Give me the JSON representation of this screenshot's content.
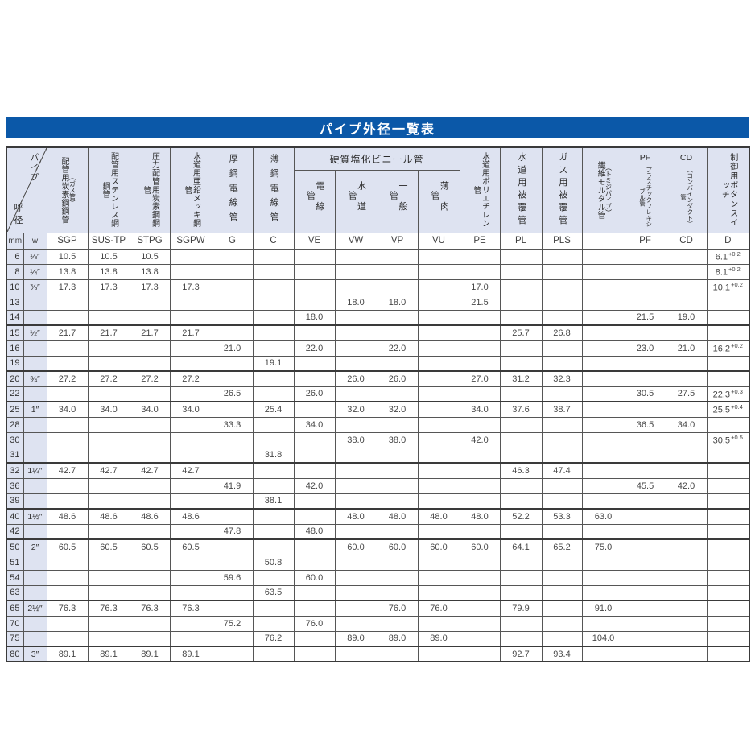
{
  "title": "パイプ外径一覧表",
  "colors": {
    "title_bar": "#0b58a8",
    "header_bg": "#dee3f1",
    "grid": "#565656"
  },
  "table": {
    "corner": {
      "top": "パイプ",
      "bottom": "呼径"
    },
    "units": {
      "mm": "mm",
      "inch": "w"
    },
    "headers": {
      "sgp": {
        "main": "配管用炭素鋼鋼管",
        "paren": "（ガス管）",
        "code": "SGP"
      },
      "sus": {
        "main": "配管用ステンレス鋼鋼管",
        "code": "SUS-TP"
      },
      "stpg": {
        "main": "圧力配管用炭素鋼鋼管",
        "code": "STPG"
      },
      "sgpw": {
        "main": "水道用亜鉛メッキ鋼管",
        "code": "SGPW"
      },
      "g": {
        "main": "厚鋼電線管",
        "code": "G"
      },
      "c": {
        "main": "薄鋼電線管",
        "code": "C"
      },
      "vinyl": {
        "group": "硬質塩化ビニール管",
        "ve": {
          "label": "電線管",
          "code": "VE"
        },
        "vw": {
          "label": "水道管",
          "code": "VW"
        },
        "vp": {
          "label": "一般管",
          "code": "VP"
        },
        "vu": {
          "label": "薄肉管",
          "code": "VU"
        }
      },
      "pe": {
        "main": "水道用ポリエチレン管",
        "code": "PE"
      },
      "pl": {
        "main": "水道用被覆管",
        "code": "PL"
      },
      "pls": {
        "main": "ガス用被覆管",
        "code": "PLS"
      },
      "fm": {
        "main": "繊維モルタル管",
        "paren": "（トミジパイプ）",
        "code": ""
      },
      "pf": {
        "latin": "PF",
        "small": "プラスチックフレキシブル管",
        "code": "PF"
      },
      "cd": {
        "latin": "CD",
        "small": "（コンバインダクト）管",
        "code": "CD"
      },
      "d": {
        "main": "制御用ボタンスイッチ",
        "code": "D"
      }
    },
    "rows": [
      {
        "mm": "6",
        "inch": "⅛″",
        "sgp": "10.5",
        "sus": "10.5",
        "stpg": "10.5",
        "d": "6.1",
        "dsup": "+0.2"
      },
      {
        "mm": "8",
        "inch": "¼″",
        "sgp": "13.8",
        "sus": "13.8",
        "stpg": "13.8",
        "d": "8.1",
        "dsup": "+0.2"
      },
      {
        "mm": "10",
        "inch": "⅜″",
        "sgp": "17.3",
        "sus": "17.3",
        "stpg": "17.3",
        "sgpw": "17.3",
        "pe": "17.0",
        "d": "10.1",
        "dsup": "+0.2"
      },
      {
        "mm": "13",
        "vw": "18.0",
        "vp": "18.0",
        "pe": "21.5"
      },
      {
        "mm": "14",
        "ve": "18.0",
        "pf": "21.5",
        "cd": "19.0"
      },
      {
        "mm": "15",
        "inch": "½″",
        "sgp": "21.7",
        "sus": "21.7",
        "stpg": "21.7",
        "sgpw": "21.7",
        "pl": "25.7",
        "pls": "26.8",
        "thick": true
      },
      {
        "mm": "16",
        "g": "21.0",
        "ve": "22.0",
        "vp": "22.0",
        "pf": "23.0",
        "cd": "21.0",
        "d": "16.2",
        "dsup": "+0.2"
      },
      {
        "mm": "19",
        "c": "19.1"
      },
      {
        "mm": "20",
        "inch": "¾″",
        "sgp": "27.2",
        "sus": "27.2",
        "stpg": "27.2",
        "sgpw": "27.2",
        "vw": "26.0",
        "vp": "26.0",
        "pe": "27.0",
        "pl": "31.2",
        "pls": "32.3",
        "thick": true
      },
      {
        "mm": "22",
        "g": "26.5",
        "ve": "26.0",
        "pf": "30.5",
        "cd": "27.5",
        "d": "22.3",
        "dsup": "+0.3"
      },
      {
        "mm": "25",
        "inch": "1″",
        "sgp": "34.0",
        "sus": "34.0",
        "stpg": "34.0",
        "sgpw": "34.0",
        "c": "25.4",
        "vw": "32.0",
        "vp": "32.0",
        "pe": "34.0",
        "pl": "37.6",
        "pls": "38.7",
        "d": "25.5",
        "dsup": "+0.4",
        "thick": true
      },
      {
        "mm": "28",
        "g": "33.3",
        "ve": "34.0",
        "pf": "36.5",
        "cd": "34.0"
      },
      {
        "mm": "30",
        "vw": "38.0",
        "vp": "38.0",
        "pe": "42.0",
        "d": "30.5",
        "dsup": "+0.5"
      },
      {
        "mm": "31",
        "c": "31.8"
      },
      {
        "mm": "32",
        "inch": "1¼″",
        "sgp": "42.7",
        "sus": "42.7",
        "stpg": "42.7",
        "sgpw": "42.7",
        "pl": "46.3",
        "pls": "47.4",
        "thick": true
      },
      {
        "mm": "36",
        "g": "41.9",
        "ve": "42.0",
        "pf": "45.5",
        "cd": "42.0"
      },
      {
        "mm": "39",
        "c": "38.1"
      },
      {
        "mm": "40",
        "inch": "1½″",
        "sgp": "48.6",
        "sus": "48.6",
        "stpg": "48.6",
        "sgpw": "48.6",
        "vw": "48.0",
        "vp": "48.0",
        "vu": "48.0",
        "pe": "48.0",
        "pl": "52.2",
        "pls": "53.3",
        "fm": "63.0",
        "thick": true
      },
      {
        "mm": "42",
        "g": "47.8",
        "ve": "48.0"
      },
      {
        "mm": "50",
        "inch": "2″",
        "sgp": "60.5",
        "sus": "60.5",
        "stpg": "60.5",
        "sgpw": "60.5",
        "vw": "60.0",
        "vp": "60.0",
        "vu": "60.0",
        "pe": "60.0",
        "pl": "64.1",
        "pls": "65.2",
        "fm": "75.0",
        "thick": true
      },
      {
        "mm": "51",
        "c": "50.8"
      },
      {
        "mm": "54",
        "g": "59.6",
        "ve": "60.0"
      },
      {
        "mm": "63",
        "c": "63.5"
      },
      {
        "mm": "65",
        "inch": "2½″",
        "sgp": "76.3",
        "sus": "76.3",
        "stpg": "76.3",
        "sgpw": "76.3",
        "vp": "76.0",
        "vu": "76.0",
        "pl": "79.9",
        "fm": "91.0",
        "thick": true
      },
      {
        "mm": "70",
        "g": "75.2",
        "ve": "76.0"
      },
      {
        "mm": "75",
        "c": "76.2",
        "vw": "89.0",
        "vp": "89.0",
        "vu": "89.0",
        "fm": "104.0"
      },
      {
        "mm": "80",
        "inch": "3″",
        "sgp": "89.1",
        "sus": "89.1",
        "stpg": "89.1",
        "sgpw": "89.1",
        "pl": "92.7",
        "pls": "93.4",
        "thick": true
      }
    ]
  }
}
